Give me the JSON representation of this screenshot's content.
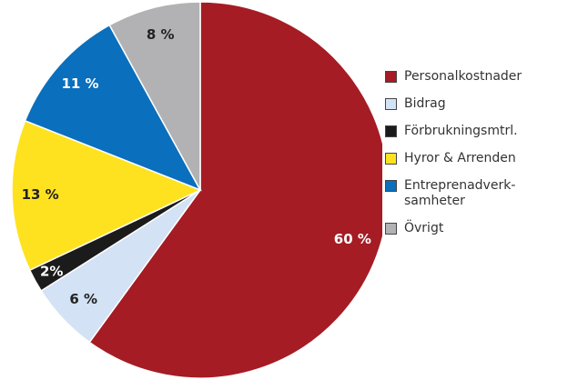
{
  "chart_data": {
    "type": "pie",
    "categories": [
      "Personalkostnader",
      "Bidrag",
      "Förbrukningsmtrl.",
      "Hyror & Arrenden",
      "Entreprenadverk-samheter",
      "Övrigt"
    ],
    "values": [
      60,
      6,
      2,
      13,
      11,
      8
    ],
    "value_labels": [
      "60 %",
      "6 %",
      "2%",
      "13 %",
      "11 %",
      "8 %"
    ],
    "colors": [
      "#a51c24",
      "#d3e2f4",
      "#1b1b1b",
      "#ffe21f",
      "#0a6fbd",
      "#b2b2b4"
    ],
    "legend": "right"
  }
}
